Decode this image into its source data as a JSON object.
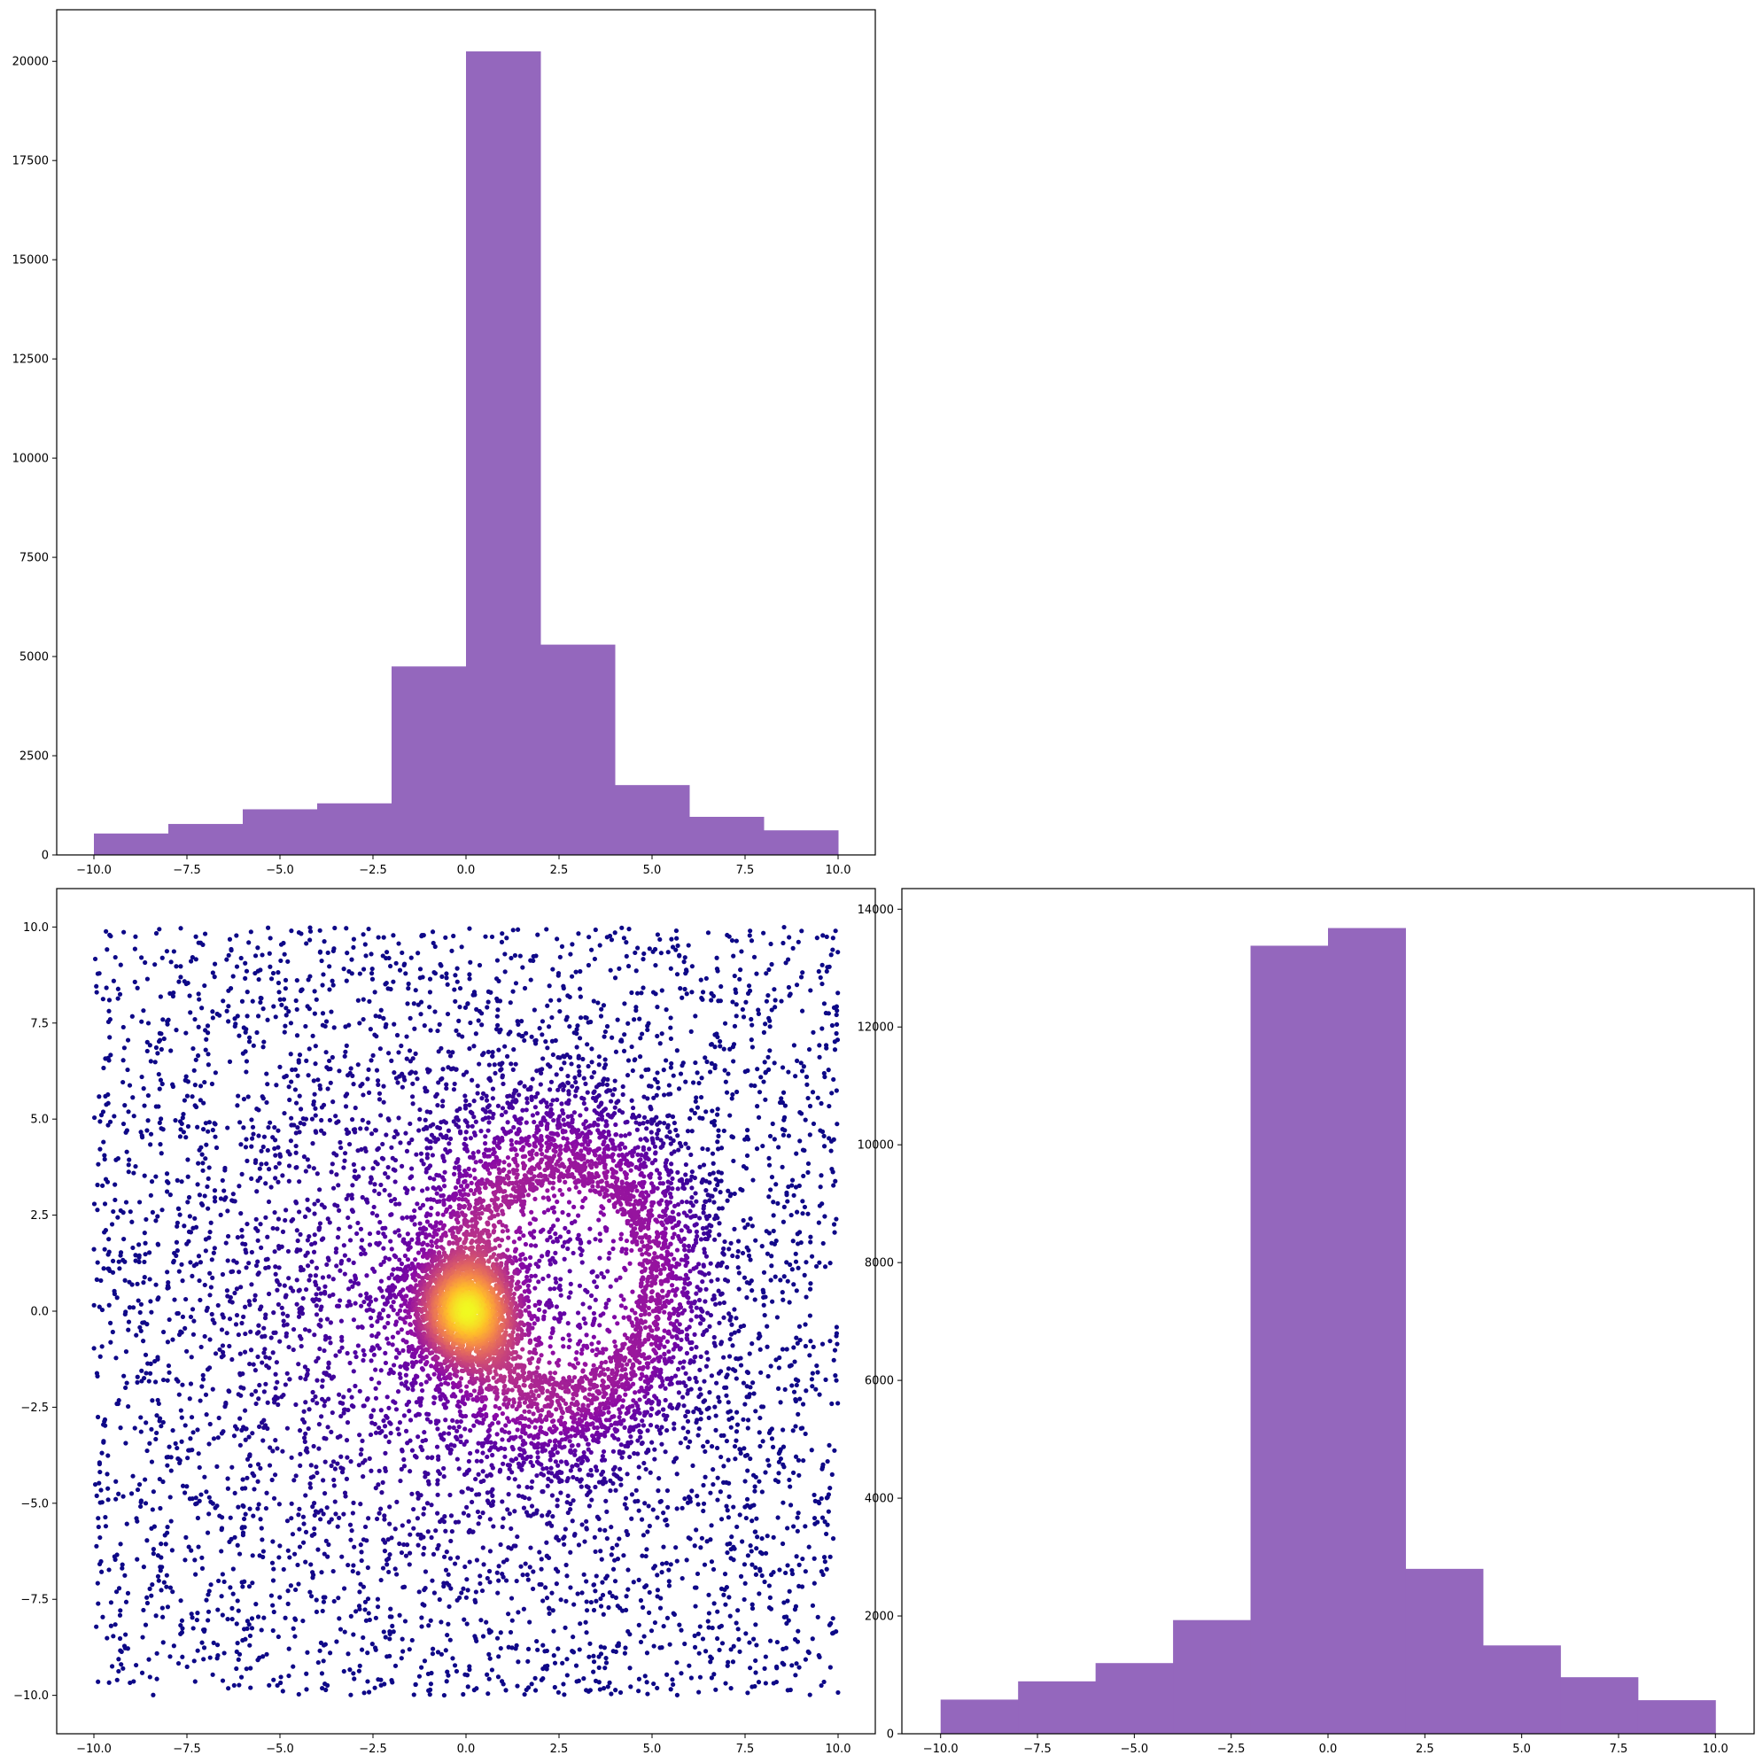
{
  "chart_data": [
    {
      "id": "x-histogram",
      "type": "bar",
      "position": "top-left",
      "bin_edges": [
        -10,
        -8,
        -6,
        -4,
        -2,
        0,
        2,
        4,
        6,
        8,
        10
      ],
      "values": [
        540,
        780,
        1150,
        1300,
        4750,
        20250,
        5300,
        1760,
        960,
        620
      ],
      "bar_color": "#9467bd",
      "xlim": [
        -11,
        11
      ],
      "ylim": [
        0,
        21300
      ],
      "xticks": [
        -10,
        -7.5,
        -5,
        -2.5,
        0,
        2.5,
        5,
        7.5,
        10
      ],
      "xtick_labels": [
        "−10.0",
        "−7.5",
        "−5.0",
        "−2.5",
        "0.0",
        "2.5",
        "5.0",
        "7.5",
        "10.0"
      ],
      "yticks": [
        0,
        2500,
        5000,
        7500,
        10000,
        12500,
        15000,
        17500,
        20000
      ],
      "ytick_labels": [
        "0",
        "2500",
        "5000",
        "7500",
        "10000",
        "12500",
        "15000",
        "17500",
        "20000"
      ],
      "title": "",
      "xlabel": "",
      "ylabel": "",
      "grid": false
    },
    {
      "id": "joint-scatter",
      "type": "scatter",
      "position": "bottom-left",
      "description_of_data": "uniform points on [-10,10]^2 plus dense cluster near origin and ring around (2.5,0.5), colored by density",
      "colormap": "plasma",
      "colormap_stops": [
        "#0d0887",
        "#5302a3",
        "#8b0aa5",
        "#b83289",
        "#db5c68",
        "#f48849",
        "#febd2a",
        "#f0f921"
      ],
      "xlim": [
        -11,
        11
      ],
      "ylim": [
        -11,
        11
      ],
      "xticks": [
        -10,
        -7.5,
        -5,
        -2.5,
        0,
        2.5,
        5,
        7.5,
        10
      ],
      "xtick_labels": [
        "−10.0",
        "−7.5",
        "−5.0",
        "−2.5",
        "0.0",
        "2.5",
        "5.0",
        "7.5",
        "10.0"
      ],
      "yticks": [
        -10,
        -7.5,
        -5,
        -2.5,
        0,
        2.5,
        5,
        7.5,
        10
      ],
      "ytick_labels": [
        "−10.0",
        "−7.5",
        "−5.0",
        "−2.5",
        "0.0",
        "2.5",
        "5.0",
        "7.5",
        "10.0"
      ],
      "title": "",
      "xlabel": "",
      "ylabel": "",
      "grid": false
    },
    {
      "id": "y-histogram",
      "type": "bar",
      "position": "bottom-right",
      "bin_edges": [
        -10,
        -8,
        -6,
        -4,
        -2,
        0,
        2,
        4,
        6,
        8,
        10
      ],
      "values": [
        580,
        890,
        1200,
        1930,
        13380,
        13680,
        2800,
        1500,
        960,
        570
      ],
      "bar_color": "#9467bd",
      "xlim": [
        -11,
        11
      ],
      "ylim": [
        0,
        14350
      ],
      "xticks": [
        -10,
        -7.5,
        -5,
        -2.5,
        0,
        2.5,
        5,
        7.5,
        10
      ],
      "xtick_labels": [
        "−10.0",
        "−7.5",
        "−5.0",
        "−2.5",
        "0.0",
        "2.5",
        "5.0",
        "7.5",
        "10.0"
      ],
      "yticks": [
        0,
        2000,
        4000,
        6000,
        8000,
        10000,
        12000,
        14000
      ],
      "ytick_labels": [
        "0",
        "2000",
        "4000",
        "6000",
        "8000",
        "10000",
        "12000",
        "14000"
      ],
      "title": "",
      "xlabel": "",
      "ylabel": "",
      "grid": false
    }
  ]
}
